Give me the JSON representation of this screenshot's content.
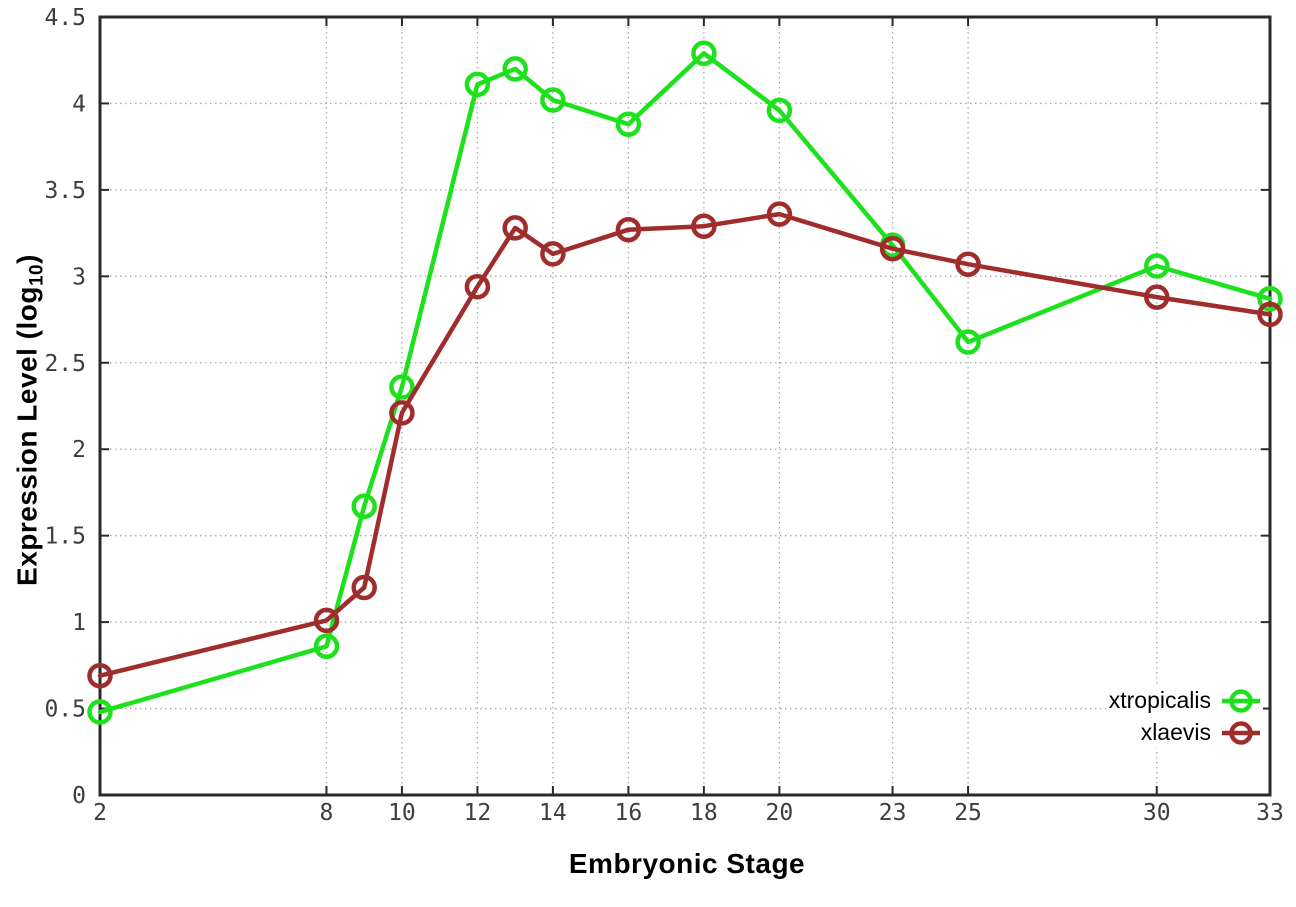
{
  "chart_data": {
    "type": "line",
    "title": "",
    "xlabel": "Embryonic Stage",
    "ylabel": "Expression Level (log10)",
    "ylabel_parts": {
      "main": "Expression Level (log",
      "sub": "10",
      "end": ")"
    },
    "x": [
      2,
      8,
      9,
      10,
      12,
      13,
      14,
      16,
      18,
      20,
      23,
      25,
      30,
      33
    ],
    "series": [
      {
        "name": "xtropicalis",
        "color": "#1ee11e",
        "values": [
          0.48,
          0.86,
          1.67,
          2.36,
          4.11,
          4.2,
          4.02,
          3.88,
          4.29,
          3.96,
          3.18,
          2.62,
          3.06,
          2.87
        ]
      },
      {
        "name": "xlaevis",
        "color": "#a02c2c",
        "values": [
          0.69,
          1.01,
          1.2,
          2.21,
          2.94,
          3.28,
          3.13,
          3.27,
          3.29,
          3.36,
          3.16,
          3.07,
          2.88,
          2.78
        ]
      }
    ],
    "xlim": [
      2,
      33
    ],
    "ylim": [
      0,
      4.5
    ],
    "xticks": [
      2,
      8,
      10,
      12,
      14,
      16,
      18,
      20,
      23,
      25,
      30,
      33
    ],
    "xtick_labels": [
      "2",
      "8",
      "10",
      "12",
      "14",
      "16",
      "18",
      "20",
      "23",
      "25",
      "30",
      "33"
    ],
    "yticks": [
      0,
      0.5,
      1,
      1.5,
      2,
      2.5,
      3,
      3.5,
      4,
      4.5
    ],
    "ytick_labels": [
      "0",
      "0.5",
      "1",
      "1.5",
      "2",
      "2.5",
      "3",
      "3.5",
      "4",
      "4.5"
    ],
    "grid": true,
    "legend_position": "bottom-right",
    "style": {
      "background": "#ffffff",
      "border_color": "#2a2a2a",
      "grid_color": "#a8a8a8",
      "tick_label_color": "#3d3d3d"
    }
  }
}
